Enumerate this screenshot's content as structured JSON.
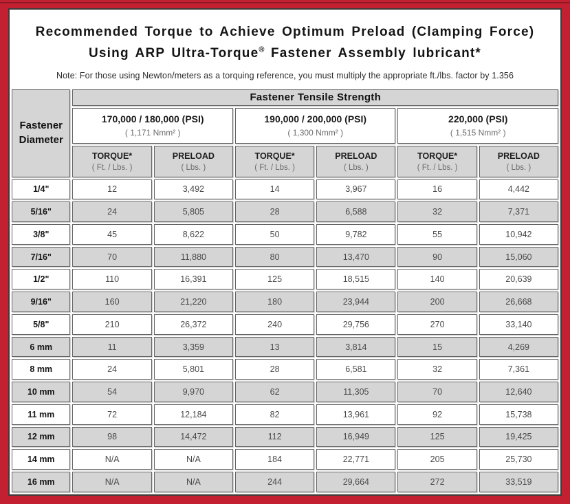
{
  "colors": {
    "border_red": "#c32031",
    "accent_dark_red": "#8f1a24",
    "frame_dark": "#3c3c3c",
    "cell_gray": "#d5d5d5",
    "cell_white": "#ffffff"
  },
  "title": {
    "line1": "Recommended Torque to Achieve Optimum Preload (Clamping Force)",
    "line2_pre": "Using ARP Ultra-Torque",
    "line2_reg": "®",
    "line2_post": " Fastener Assembly lubricant*",
    "note": "Note: For those using Newton/meters as a torquing reference, you must multiply the appropriate ft./lbs. factor by 1.356"
  },
  "table": {
    "main_header": "Fastener Tensile Strength",
    "corner_line1": "Fastener",
    "corner_line2": "Diameter",
    "groups": [
      {
        "psi": "170,000 / 180,000 (PSI)",
        "nmm": "( 1,171 Nmm² )"
      },
      {
        "psi": "190,000 / 200,000 (PSI)",
        "nmm": "( 1,300 Nmm² )"
      },
      {
        "psi": "220,000 (PSI)",
        "nmm": "( 1,515 Nmm² )"
      }
    ],
    "sub_headers": {
      "torque_label": "TORQUE*",
      "torque_unit": "( Ft. / Lbs. )",
      "preload_label": "PRELOAD",
      "preload_unit": "( Lbs. )"
    },
    "rows": [
      {
        "diameter": "1/4\"",
        "values": [
          "12",
          "3,492",
          "14",
          "3,967",
          "16",
          "4,442"
        ]
      },
      {
        "diameter": "5/16\"",
        "values": [
          "24",
          "5,805",
          "28",
          "6,588",
          "32",
          "7,371"
        ]
      },
      {
        "diameter": "3/8\"",
        "values": [
          "45",
          "8,622",
          "50",
          "9,782",
          "55",
          "10,942"
        ]
      },
      {
        "diameter": "7/16\"",
        "values": [
          "70",
          "11,880",
          "80",
          "13,470",
          "90",
          "15,060"
        ]
      },
      {
        "diameter": "1/2\"",
        "values": [
          "110",
          "16,391",
          "125",
          "18,515",
          "140",
          "20,639"
        ]
      },
      {
        "diameter": "9/16\"",
        "values": [
          "160",
          "21,220",
          "180",
          "23,944",
          "200",
          "26,668"
        ]
      },
      {
        "diameter": "5/8\"",
        "values": [
          "210",
          "26,372",
          "240",
          "29,756",
          "270",
          "33,140"
        ]
      },
      {
        "diameter": "6 mm",
        "values": [
          "11",
          "3,359",
          "13",
          "3,814",
          "15",
          "4,269"
        ]
      },
      {
        "diameter": "8 mm",
        "values": [
          "24",
          "5,801",
          "28",
          "6,581",
          "32",
          "7,361"
        ]
      },
      {
        "diameter": "10 mm",
        "values": [
          "54",
          "9,970",
          "62",
          "11,305",
          "70",
          "12,640"
        ]
      },
      {
        "diameter": "11 mm",
        "values": [
          "72",
          "12,184",
          "82",
          "13,961",
          "92",
          "15,738"
        ]
      },
      {
        "diameter": "12 mm",
        "values": [
          "98",
          "14,472",
          "112",
          "16,949",
          "125",
          "19,425"
        ]
      },
      {
        "diameter": "14 mm",
        "values": [
          "N/A",
          "N/A",
          "184",
          "22,771",
          "205",
          "25,730"
        ]
      },
      {
        "diameter": "16 mm",
        "values": [
          "N/A",
          "N/A",
          "244",
          "29,664",
          "272",
          "33,519"
        ]
      }
    ]
  },
  "chart_data": {
    "type": "table",
    "title": "Recommended Torque to Achieve Optimum Preload (Clamping Force) Using ARP Ultra-Torque Fastener Assembly lubricant*",
    "column_groups": [
      "170,000 / 180,000 (PSI)",
      "190,000 / 200,000 (PSI)",
      "220,000 (PSI)"
    ],
    "columns": [
      "Fastener Diameter",
      "Torque (Ft./Lbs.) 170/180k",
      "Preload (Lbs.) 170/180k",
      "Torque (Ft./Lbs.) 190/200k",
      "Preload (Lbs.) 190/200k",
      "Torque (Ft./Lbs.) 220k",
      "Preload (Lbs.) 220k"
    ],
    "rows": [
      [
        "1/4\"",
        12,
        3492,
        14,
        3967,
        16,
        4442
      ],
      [
        "5/16\"",
        24,
        5805,
        28,
        6588,
        32,
        7371
      ],
      [
        "3/8\"",
        45,
        8622,
        50,
        9782,
        55,
        10942
      ],
      [
        "7/16\"",
        70,
        11880,
        80,
        13470,
        90,
        15060
      ],
      [
        "1/2\"",
        110,
        16391,
        125,
        18515,
        140,
        20639
      ],
      [
        "9/16\"",
        160,
        21220,
        180,
        23944,
        200,
        26668
      ],
      [
        "5/8\"",
        210,
        26372,
        240,
        29756,
        270,
        33140
      ],
      [
        "6 mm",
        11,
        3359,
        13,
        3814,
        15,
        4269
      ],
      [
        "8 mm",
        24,
        5801,
        28,
        6581,
        32,
        7361
      ],
      [
        "10 mm",
        54,
        9970,
        62,
        11305,
        70,
        12640
      ],
      [
        "11 mm",
        72,
        12184,
        82,
        13961,
        92,
        15738
      ],
      [
        "12 mm",
        98,
        14472,
        112,
        16949,
        125,
        19425
      ],
      [
        "14 mm",
        null,
        null,
        184,
        22771,
        205,
        25730
      ],
      [
        "16 mm",
        null,
        null,
        244,
        29664,
        272,
        33519
      ]
    ]
  }
}
